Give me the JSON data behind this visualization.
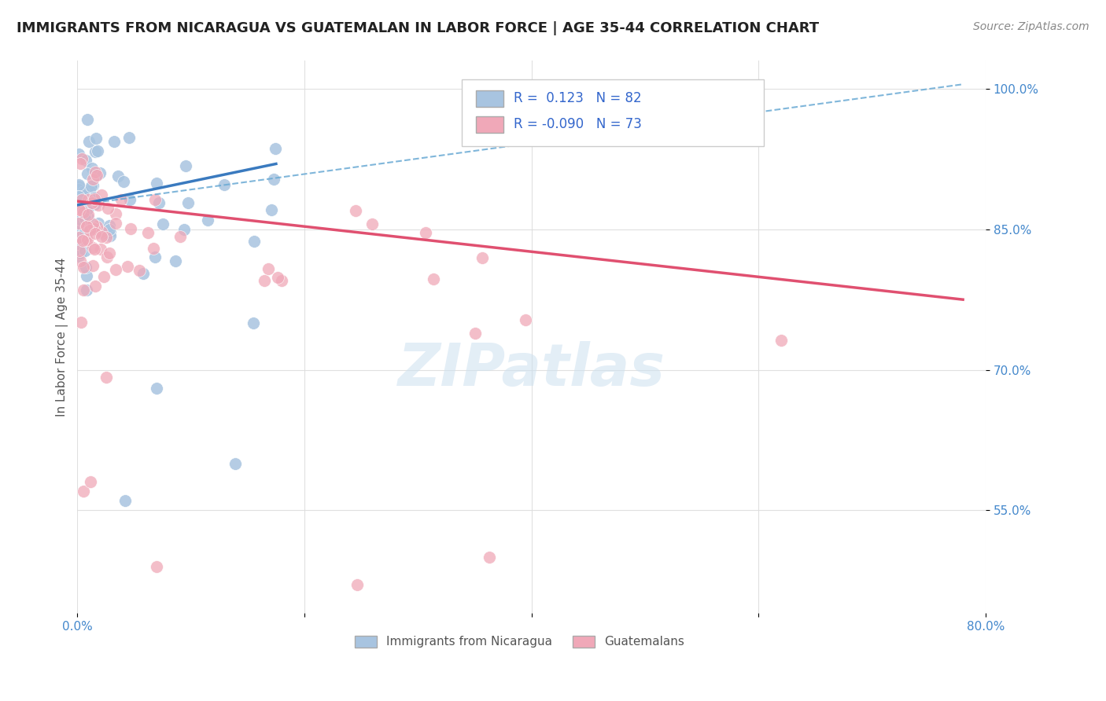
{
  "title": "IMMIGRANTS FROM NICARAGUA VS GUATEMALAN IN LABOR FORCE | AGE 35-44 CORRELATION CHART",
  "source": "Source: ZipAtlas.com",
  "ylabel": "In Labor Force | Age 35-44",
  "legend_labels": [
    "Immigrants from Nicaragua",
    "Guatemalans"
  ],
  "r_nicaragua": 0.123,
  "n_nicaragua": 82,
  "r_guatemalan": -0.09,
  "n_guatemalan": 73,
  "xlim": [
    0.0,
    0.8
  ],
  "ylim": [
    0.44,
    1.03
  ],
  "xticks": [
    0.0,
    0.2,
    0.4,
    0.6,
    0.8
  ],
  "xtick_labels": [
    "0.0%",
    "",
    "",
    "",
    "80.0%"
  ],
  "ytick_positions": [
    0.55,
    0.7,
    0.85,
    1.0
  ],
  "ytick_labels": [
    "55.0%",
    "70.0%",
    "85.0%",
    "100.0%"
  ],
  "color_nicaragua": "#a8c4e0",
  "color_nicaragua_line": "#3a7abf",
  "color_guatemalan": "#f0a8b8",
  "color_guatemalan_line": "#e05070",
  "color_dashed": "#6aaad4",
  "background_color": "#ffffff",
  "grid_color": "#dddddd",
  "title_color": "#222222",
  "axis_label_color": "#4488cc",
  "watermark_text": "ZIPatlas",
  "watermark_color": "#cce0f0"
}
